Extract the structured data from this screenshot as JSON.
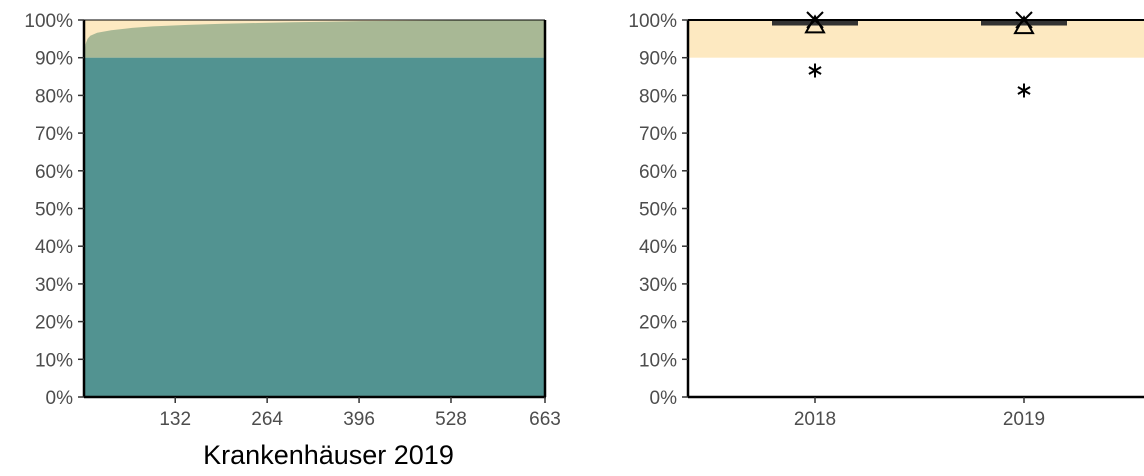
{
  "colors": {
    "target_band": "#fde9c1",
    "distribution_fill": "#529391",
    "top_fill": "#a8b895",
    "axis": "#000000",
    "box": "#333333",
    "marker": "#000000"
  },
  "chart_data": [
    {
      "type": "area",
      "title": "",
      "xlabel": "Krankenhäuser 2019",
      "ylabel": "",
      "ylim": [
        0,
        100
      ],
      "yticks": [
        "0%",
        "10%",
        "20%",
        "30%",
        "40%",
        "50%",
        "60%",
        "70%",
        "80%",
        "90%",
        "100%"
      ],
      "ytick_values": [
        0,
        10,
        20,
        30,
        40,
        50,
        60,
        70,
        80,
        90,
        100
      ],
      "xlim": [
        1,
        663
      ],
      "xticks": [
        "132",
        "264",
        "396",
        "528",
        "663"
      ],
      "xtick_values": [
        132,
        264,
        396,
        528,
        663
      ],
      "target_range": [
        90,
        100
      ],
      "distribution_curve": {
        "x": [
          1,
          3,
          6,
          10,
          20,
          40,
          70,
          100,
          150,
          200,
          250,
          300,
          350,
          400,
          500,
          663
        ],
        "y": [
          90.5,
          93.5,
          95.0,
          95.8,
          96.6,
          97.3,
          97.9,
          98.3,
          98.7,
          99.0,
          99.2,
          99.4,
          99.55,
          99.7,
          99.85,
          100
        ]
      },
      "grid": false
    },
    {
      "type": "box",
      "title": "",
      "xlabel": "",
      "ylabel": "",
      "ylim": [
        0,
        100
      ],
      "yticks": [
        "0%",
        "10%",
        "20%",
        "30%",
        "40%",
        "50%",
        "60%",
        "70%",
        "80%",
        "90%",
        "100%"
      ],
      "ytick_values": [
        0,
        10,
        20,
        30,
        40,
        50,
        60,
        70,
        80,
        90,
        100
      ],
      "categories": [
        "2018",
        "2019"
      ],
      "target_range": [
        90,
        100
      ],
      "boxes": [
        {
          "category": "2018",
          "q1": 98.8,
          "median": 99.4,
          "q3": 100,
          "mean": 98.3,
          "outliers": [
            86.6
          ]
        },
        {
          "category": "2019",
          "q1": 98.8,
          "median": 99.4,
          "q3": 100,
          "mean": 98.1,
          "outliers": [
            81.3
          ]
        }
      ],
      "grid": false
    }
  ]
}
